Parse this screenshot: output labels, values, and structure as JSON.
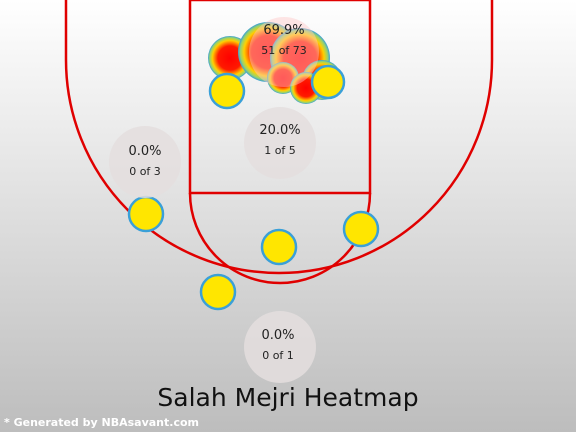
{
  "chart_data": {
    "type": "heatmap",
    "title": "Salah Mejri Heatmap",
    "credit": "* Generated by NBAsavant.com",
    "zones": [
      {
        "id": "restricted-area",
        "pct_label": "69.9%",
        "count_label": "51 of 73",
        "pct": 69.9,
        "made": 51,
        "attempts": 73
      },
      {
        "id": "paint",
        "pct_label": "20.0%",
        "count_label": "1 of 5",
        "pct": 20.0,
        "made": 1,
        "attempts": 5
      },
      {
        "id": "left-baseline-midrange",
        "pct_label": "0.0%",
        "count_label": "0 of 3",
        "pct": 0.0,
        "made": 0,
        "attempts": 3
      },
      {
        "id": "top-of-key",
        "pct_label": "0.0%",
        "count_label": "0 of 1",
        "pct": 0.0,
        "made": 0,
        "attempts": 1
      }
    ],
    "colors": {
      "cold": "#ffe600",
      "hot": "#ff0000",
      "edge": "#3aa0d8",
      "line": "#e00000"
    }
  }
}
